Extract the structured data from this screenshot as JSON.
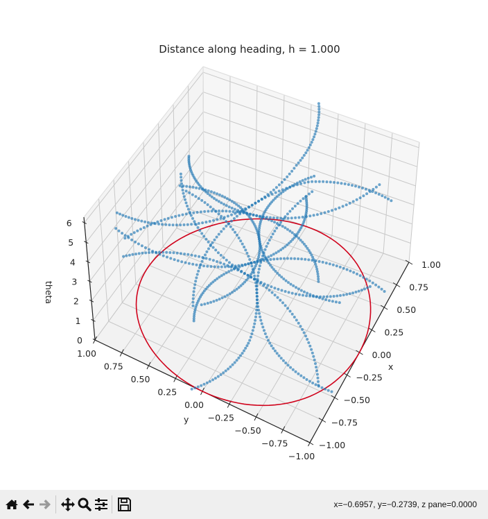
{
  "figure": {
    "title": "Distance along heading, h = 1.000"
  },
  "chart_data": {
    "type": "scatter3d",
    "title": "Distance along heading, h = 1.000",
    "xlabel": "x",
    "ylabel": "y",
    "zlabel": "theta",
    "xlim": [
      -1.0,
      1.0
    ],
    "ylim": [
      -1.0,
      1.0
    ],
    "zlim": [
      0,
      6.283
    ],
    "x_ticks": [
      "−1.00",
      "−0.75",
      "−0.50",
      "−0.25",
      "0.00",
      "0.25",
      "0.50",
      "0.75",
      "1.00"
    ],
    "y_ticks": [
      "1.00",
      "0.75",
      "0.50",
      "0.25",
      "0.00",
      "−0.25",
      "−0.50",
      "−0.75",
      "−1.00"
    ],
    "z_ticks": [
      "0",
      "1",
      "2",
      "3",
      "4",
      "5",
      "6"
    ],
    "grid": true,
    "series": [
      {
        "name": "unit circle (z=0)",
        "type": "line",
        "color": "#d0021b",
        "description": "circle of radius 1 centred at origin on z=0 plane"
      },
      {
        "name": "trajectories",
        "type": "scatter",
        "color": "#1f77b4",
        "description": "12 helical arcs (x=cos, y=sin paths with varying theta) passing near the origin, points sampled along heading"
      }
    ]
  },
  "toolbar": {
    "buttons": [
      {
        "name": "home",
        "icon": "home-icon"
      },
      {
        "name": "back",
        "icon": "arrow-left-icon"
      },
      {
        "name": "forward",
        "icon": "arrow-right-icon"
      },
      {
        "name": "pan",
        "icon": "move-icon"
      },
      {
        "name": "zoom",
        "icon": "magnifier-icon"
      },
      {
        "name": "configure",
        "icon": "sliders-icon"
      },
      {
        "name": "save",
        "icon": "floppy-disk-icon"
      }
    ],
    "coords": "x=−0.6957, y=−0.2739, z pane=0.0000"
  }
}
